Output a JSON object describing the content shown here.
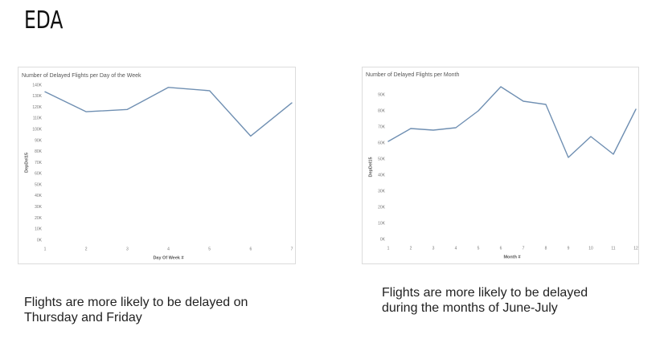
{
  "page": {
    "title": "EDA"
  },
  "captions": [
    "Flights are more likely to be delayed on Thursday and Friday",
    "Flights are more likely to be delayed during the months of June-July"
  ],
  "colors": {
    "line": "#6f8fb2",
    "axis_text": "#777777",
    "title_text": "#555555",
    "border": "#dcdcdc"
  },
  "chart_data": [
    {
      "type": "line",
      "title": "Number of Delayed Flights per Day of the Week",
      "xlabel": "Day Of Week #",
      "ylabel": "DepDel15",
      "x": [
        1,
        2,
        3,
        4,
        5,
        6,
        7
      ],
      "x_tick_labels": [
        "1",
        "2",
        "3",
        "4",
        "5",
        "6",
        "7"
      ],
      "values": [
        134000,
        116000,
        118000,
        138000,
        135000,
        94000,
        124000
      ],
      "ylim": [
        0,
        140000
      ],
      "y_ticks": [
        0,
        10000,
        20000,
        30000,
        40000,
        50000,
        60000,
        70000,
        80000,
        90000,
        100000,
        110000,
        120000,
        130000,
        140000
      ],
      "y_tick_labels": [
        "0K",
        "10K",
        "20K",
        "30K",
        "40K",
        "50K",
        "60K",
        "70K",
        "80K",
        "90K",
        "100K",
        "110K",
        "120K",
        "130K",
        "140K"
      ],
      "grid": false
    },
    {
      "type": "line",
      "title": "Number of Delayed Flights per Month",
      "xlabel": "Month #",
      "ylabel": "DepDel15",
      "x": [
        1,
        2,
        3,
        4,
        5,
        6,
        7,
        8,
        9,
        10,
        11,
        12
      ],
      "x_tick_labels": [
        "1",
        "2",
        "3",
        "4",
        "5",
        "6",
        "7",
        "8",
        "9",
        "10",
        "11",
        "12"
      ],
      "values": [
        61000,
        69000,
        68000,
        69500,
        80000,
        95000,
        86000,
        84000,
        51000,
        64000,
        53000,
        81000
      ],
      "ylim": [
        0,
        90000
      ],
      "y_ticks": [
        0,
        10000,
        20000,
        30000,
        40000,
        50000,
        60000,
        70000,
        80000,
        90000
      ],
      "y_tick_labels": [
        "0K",
        "10K",
        "20K",
        "30K",
        "40K",
        "50K",
        "60K",
        "70K",
        "80K",
        "90K"
      ],
      "grid": false
    }
  ]
}
